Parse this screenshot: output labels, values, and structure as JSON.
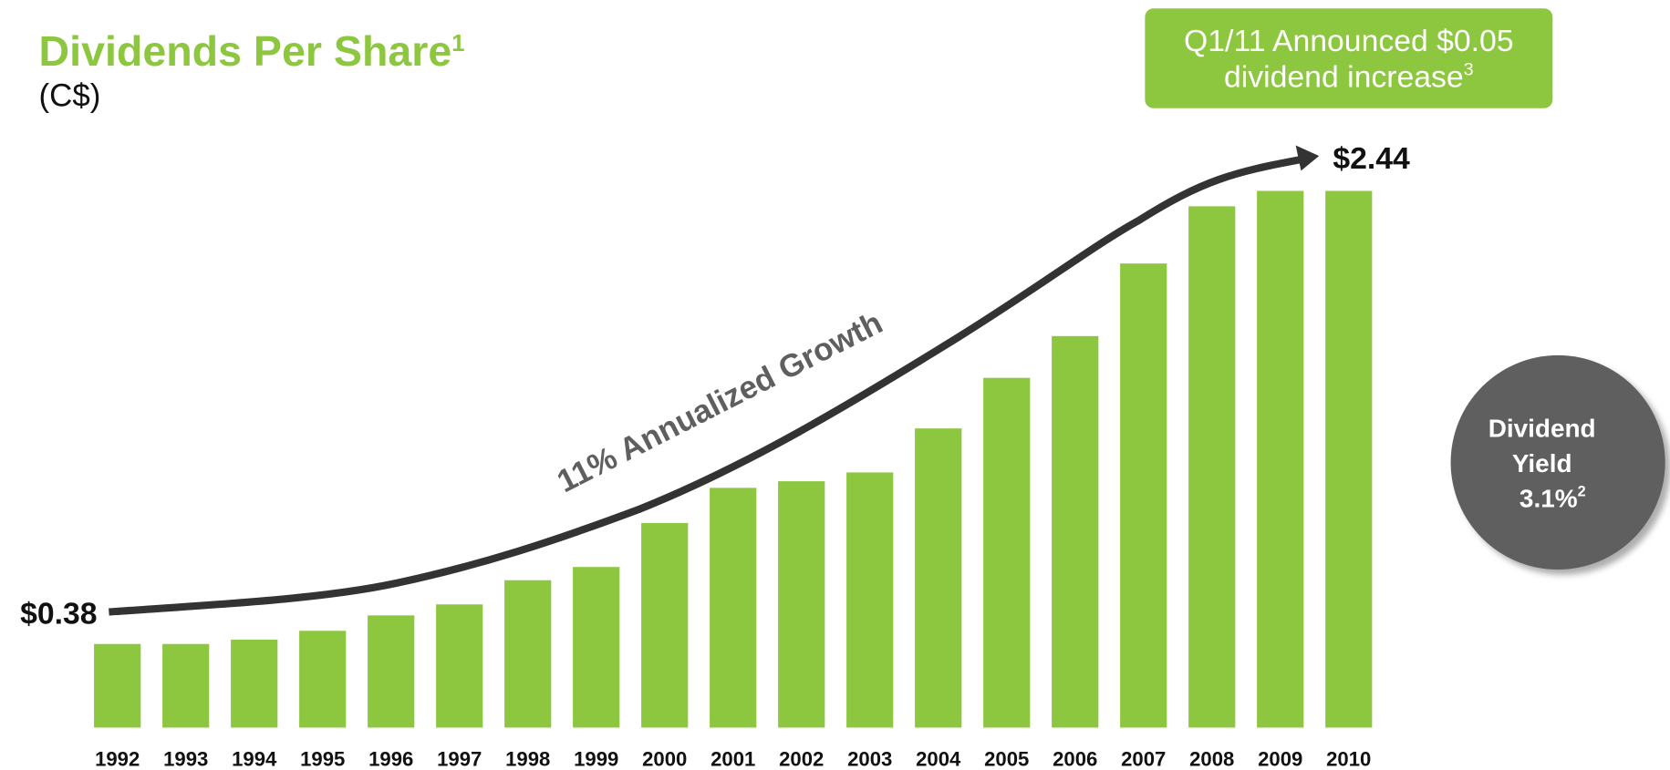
{
  "chart_data": {
    "type": "bar",
    "title": "Dividends Per Share",
    "title_footnote": "1",
    "subtitle": "(C$)",
    "callout": "Q1/11 Announced $0.05",
    "callout_line2": "dividend increase",
    "callout_footnote": "3",
    "yield_label_1": "Dividend",
    "yield_label_2": "Yield",
    "yield_value": "3.1%",
    "yield_footnote": "2",
    "annotation": "11% Annualized Growth",
    "categories": [
      "1992",
      "1993",
      "1994",
      "1995",
      "1996",
      "1997",
      "1998",
      "1999",
      "2000",
      "2001",
      "2002",
      "2003",
      "2004",
      "2005",
      "2006",
      "2007",
      "2008",
      "2009",
      "2010"
    ],
    "values": [
      0.38,
      0.38,
      0.4,
      0.44,
      0.51,
      0.56,
      0.67,
      0.73,
      0.93,
      1.09,
      1.12,
      1.16,
      1.36,
      1.59,
      1.78,
      2.11,
      2.37,
      2.44,
      2.44
    ],
    "value_labels": [
      "$0.38",
      null,
      null,
      null,
      null,
      null,
      null,
      null,
      null,
      null,
      null,
      null,
      null,
      null,
      null,
      null,
      null,
      null,
      "$2.44"
    ],
    "color": "#8dc63f",
    "ylim": [
      0,
      2.44
    ]
  }
}
